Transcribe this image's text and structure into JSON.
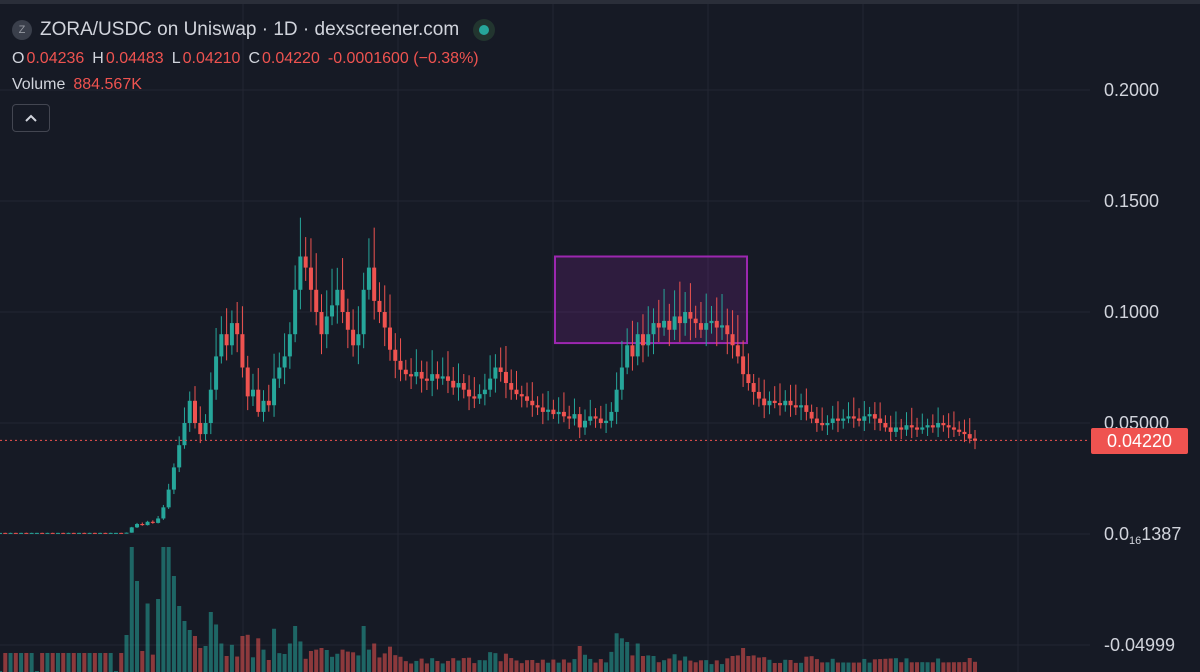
{
  "header": {
    "symbol_icon": "Z",
    "title": "ZORA/USDC on Uniswap · 1D · dexscreener.com",
    "status_icon": "live-dot-icon"
  },
  "ohlc": {
    "o_label": "O",
    "o_value": "0.04236",
    "h_label": "H",
    "h_value": "0.04483",
    "l_label": "L",
    "l_value": "0.04210",
    "c_label": "C",
    "c_value": "0.04220",
    "change": "-0.0001600 (−0.38%)"
  },
  "volume": {
    "label": "Volume",
    "value": "884.567K"
  },
  "collapse_icon": "chevron-up-icon",
  "colors": {
    "up": "#26a69a",
    "down": "#ef5350",
    "highlight": "#9c27b0",
    "background": "#161a25",
    "grid": "#232632"
  },
  "chart_data": {
    "type": "candlestick",
    "interval": "1D",
    "y_axis_ticks": [
      {
        "value": 0.2,
        "label": "0.2000"
      },
      {
        "value": 0.15,
        "label": "0.1500"
      },
      {
        "value": 0.1,
        "label": "0.1000"
      },
      {
        "value": 0.05,
        "label": "0.05000"
      },
      {
        "value": 0.0,
        "label_main": "0.0",
        "label_sub": "16",
        "label_tail": "1387"
      },
      {
        "value": -0.04999,
        "label": "-0.04999"
      }
    ],
    "last_price": {
      "value": 0.0422,
      "label": "0.04220"
    },
    "highlight_box": {
      "y_top": 0.125,
      "y_bottom": 0.086
    },
    "closes": [
      0.0005,
      0.0004,
      0.0005,
      0.0004,
      0.0005,
      0.0004,
      0.0005,
      0.0005,
      0.0004,
      0.0005,
      0.0004,
      0.0005,
      0.0004,
      0.0005,
      0.0004,
      0.0005,
      0.0004,
      0.0005,
      0.0004,
      0.0005,
      0.0004,
      0.0005,
      0.0005,
      0.0004,
      0.0006,
      0.003,
      0.0045,
      0.004,
      0.0055,
      0.005,
      0.007,
      0.012,
      0.02,
      0.03,
      0.04,
      0.05,
      0.06,
      0.05,
      0.045,
      0.05,
      0.065,
      0.08,
      0.09,
      0.085,
      0.095,
      0.09,
      0.075,
      0.062,
      0.065,
      0.055,
      0.06,
      0.058,
      0.07,
      0.075,
      0.08,
      0.09,
      0.11,
      0.125,
      0.12,
      0.11,
      0.1,
      0.09,
      0.098,
      0.103,
      0.11,
      0.1,
      0.092,
      0.085,
      0.09,
      0.11,
      0.12,
      0.105,
      0.1,
      0.093,
      0.083,
      0.078,
      0.074,
      0.072,
      0.071,
      0.073,
      0.07,
      0.069,
      0.072,
      0.07,
      0.071,
      0.069,
      0.066,
      0.068,
      0.065,
      0.062,
      0.061,
      0.063,
      0.065,
      0.07,
      0.075,
      0.073,
      0.068,
      0.065,
      0.063,
      0.062,
      0.06,
      0.058,
      0.057,
      0.055,
      0.056,
      0.054,
      0.055,
      0.053,
      0.052,
      0.054,
      0.048,
      0.051,
      0.053,
      0.052,
      0.05,
      0.051,
      0.055,
      0.065,
      0.075,
      0.085,
      0.08,
      0.09,
      0.085,
      0.09,
      0.095,
      0.093,
      0.096,
      0.092,
      0.098,
      0.095,
      0.1,
      0.097,
      0.095,
      0.092,
      0.095,
      0.096,
      0.093,
      0.094,
      0.09,
      0.085,
      0.08,
      0.072,
      0.068,
      0.064,
      0.061,
      0.058,
      0.06,
      0.059,
      0.058,
      0.06,
      0.058,
      0.057,
      0.058,
      0.055,
      0.052,
      0.05,
      0.049,
      0.05,
      0.052,
      0.051,
      0.052,
      0.053,
      0.052,
      0.051,
      0.053,
      0.054,
      0.052,
      0.05,
      0.048,
      0.046,
      0.048,
      0.047,
      0.049,
      0.048,
      0.047,
      0.048,
      0.049,
      0.048,
      0.05,
      0.049,
      0.048,
      0.047,
      0.046,
      0.045,
      0.043,
      0.042
    ]
  }
}
